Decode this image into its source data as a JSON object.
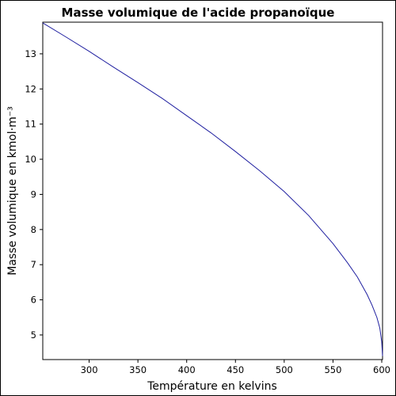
{
  "chart_data": {
    "type": "line",
    "title": "Masse volumique de l'acide propanoïque",
    "xlabel": "Température en kelvins",
    "ylabel": "Masse volumique en kmol·m⁻³",
    "xlim": [
      252.45,
      600.81
    ],
    "ylim": [
      4.3,
      13.9
    ],
    "xticks": [
      300,
      350,
      400,
      450,
      500,
      550,
      600
    ],
    "yticks": [
      5,
      6,
      7,
      8,
      9,
      10,
      11,
      12,
      13
    ],
    "grid": false,
    "colors": {
      "line": "#1f1fa0",
      "axes": "#000000",
      "background": "#ffffff"
    },
    "series": [
      {
        "x": [
          252.45,
          275,
          300,
          325,
          350,
          375,
          400,
          425,
          450,
          475,
          500,
          525,
          550,
          565,
          575,
          585,
          590,
          595,
          598,
          600,
          600.81
        ],
        "y": [
          13.88,
          13.5,
          13.07,
          12.62,
          12.18,
          11.73,
          11.24,
          10.75,
          10.22,
          9.67,
          9.08,
          8.4,
          7.6,
          7.05,
          6.65,
          6.15,
          5.85,
          5.5,
          5.2,
          4.8,
          4.4
        ]
      }
    ]
  }
}
